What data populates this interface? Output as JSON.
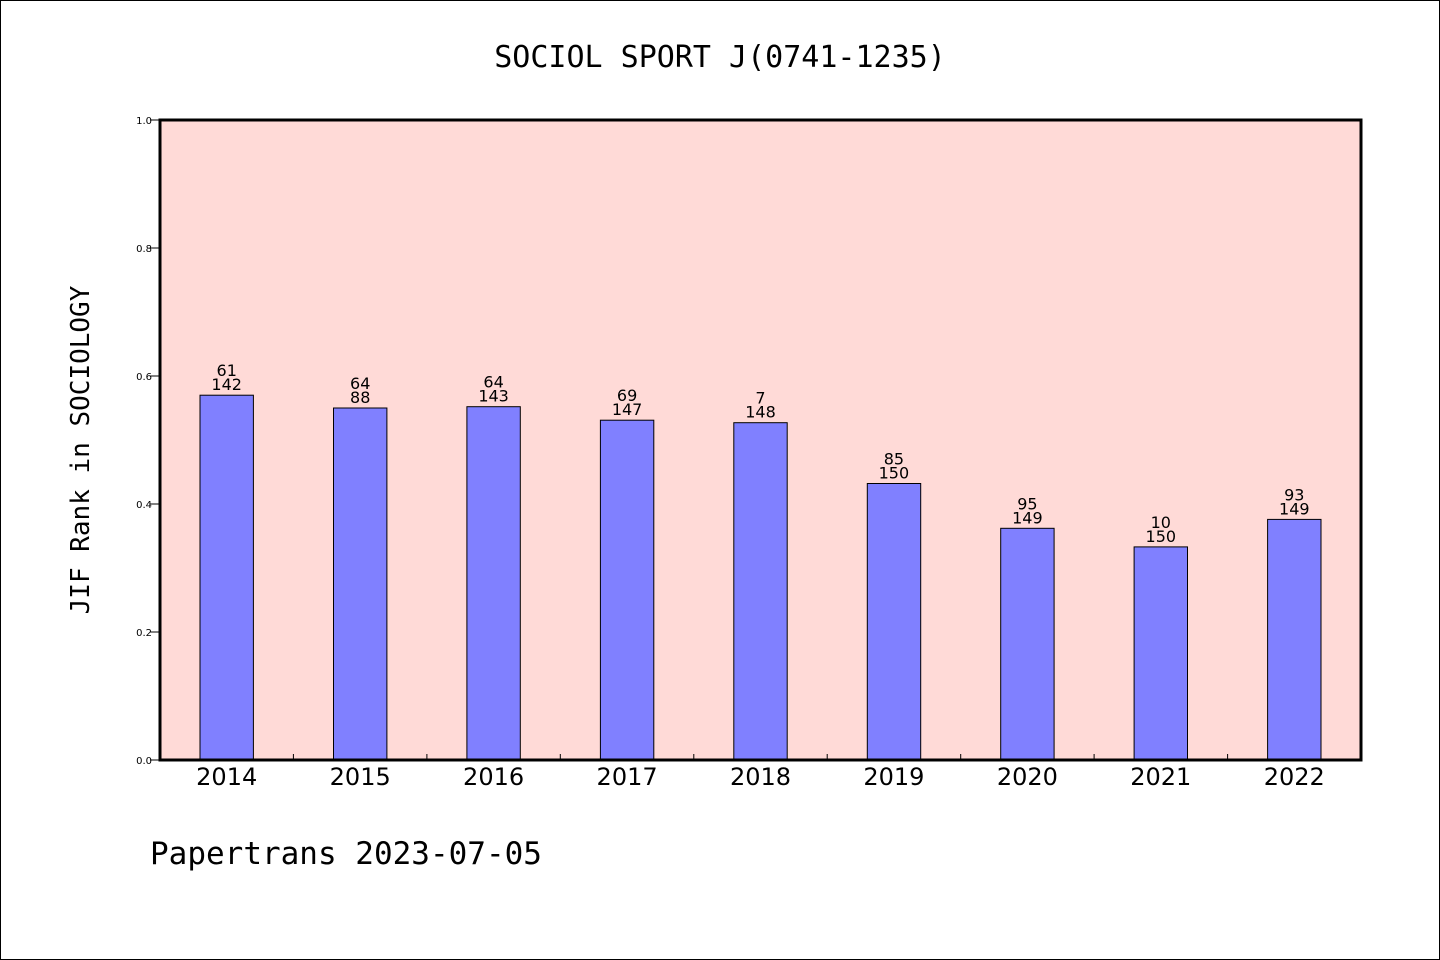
{
  "chart_data": {
    "type": "bar",
    "title": "SOCIOL SPORT J(0741-1235)",
    "ylabel": "JIF Rank in SOCIOLOGY",
    "xlabel": "",
    "ylim": [
      0.0,
      1.0
    ],
    "yticks": [
      "0.0",
      "0.2",
      "0.4",
      "0.6",
      "0.8",
      "1.0"
    ],
    "grid": false,
    "categories": [
      "2014",
      "2015",
      "2016",
      "2017",
      "2018",
      "2019",
      "2020",
      "2021",
      "2022"
    ],
    "values": [
      0.57,
      0.55,
      0.552,
      0.531,
      0.527,
      0.432,
      0.362,
      0.333,
      0.376
    ],
    "rank_labels": [
      "61",
      "64",
      "64",
      "69",
      "7",
      "85",
      "95",
      "10",
      "93"
    ],
    "total_labels": [
      "142",
      "88",
      "143",
      "147",
      "148",
      "150",
      "149",
      "150",
      "149"
    ],
    "colors": {
      "plot_background": "#ffdad7",
      "bar_fill": "#8080ff",
      "bar_stroke": "#000000"
    }
  },
  "footer": {
    "text": "Papertrans 2023-07-05"
  }
}
